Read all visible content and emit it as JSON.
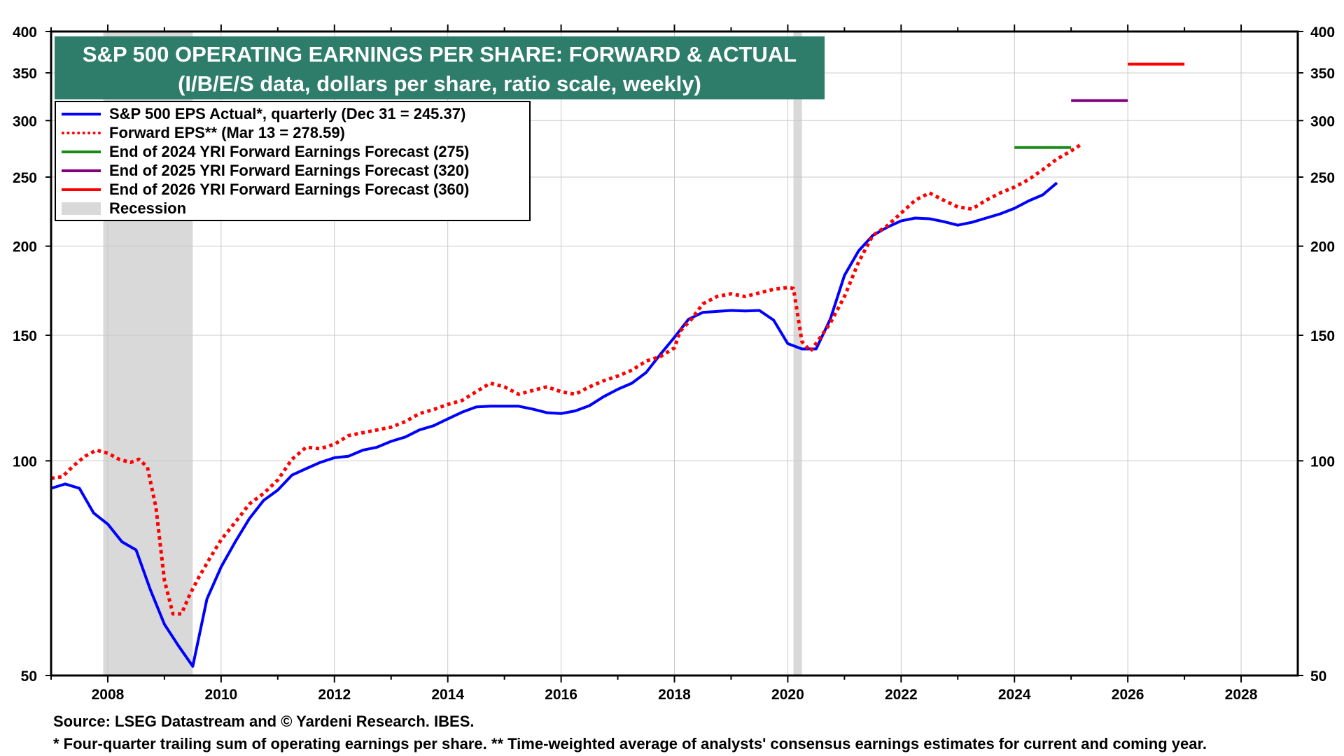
{
  "chart_data": {
    "type": "line",
    "title": "S&P 500 OPERATING EARNINGS PER SHARE: FORWARD & ACTUAL",
    "subtitle": "(I/B/E/S data, dollars per share, ratio scale, weekly)",
    "y_scale": "log",
    "ylim": [
      50,
      400
    ],
    "xlim": [
      2007.0,
      2029.0
    ],
    "y_ticks": [
      50,
      100,
      150,
      200,
      250,
      300,
      350,
      400
    ],
    "x_ticks": [
      "2008",
      "2010",
      "2012",
      "2014",
      "2016",
      "2018",
      "2020",
      "2022",
      "2024",
      "2026",
      "2028"
    ],
    "grid": true,
    "legend_position": "top-left",
    "recessions": [
      [
        2007.92,
        2009.5
      ],
      [
        2020.1,
        2020.25
      ]
    ],
    "series": [
      {
        "name": "S&P 500 EPS Actual*, quarterly (Dec 31 = 245.37)",
        "style": "solid",
        "color": "#0000ff",
        "x": [
          2007.0,
          2007.25,
          2007.5,
          2007.75,
          2008.0,
          2008.25,
          2008.5,
          2008.75,
          2009.0,
          2009.25,
          2009.5,
          2009.75,
          2010.0,
          2010.25,
          2010.5,
          2010.75,
          2011.0,
          2011.25,
          2011.5,
          2011.75,
          2012.0,
          2012.25,
          2012.5,
          2012.75,
          2013.0,
          2013.25,
          2013.5,
          2013.75,
          2014.0,
          2014.25,
          2014.5,
          2014.75,
          2015.0,
          2015.25,
          2015.5,
          2015.75,
          2016.0,
          2016.25,
          2016.5,
          2016.75,
          2017.0,
          2017.25,
          2017.5,
          2017.75,
          2018.0,
          2018.25,
          2018.5,
          2018.75,
          2019.0,
          2019.25,
          2019.5,
          2019.75,
          2020.0,
          2020.25,
          2020.5,
          2020.75,
          2021.0,
          2021.25,
          2021.5,
          2021.75,
          2022.0,
          2022.25,
          2022.5,
          2022.75,
          2023.0,
          2023.25,
          2023.5,
          2023.75,
          2024.0,
          2024.25,
          2024.5,
          2024.75
        ],
        "values": [
          91.5,
          92.8,
          91.5,
          84.5,
          81.5,
          77.0,
          75.0,
          66.0,
          59.0,
          55.0,
          51.5,
          64.0,
          71.0,
          77.0,
          83.0,
          88.0,
          91.0,
          95.5,
          97.5,
          99.5,
          101.0,
          101.5,
          103.5,
          104.5,
          106.5,
          108.0,
          110.5,
          112.0,
          114.5,
          117.0,
          119.0,
          119.3,
          119.3,
          119.3,
          118.2,
          116.8,
          116.5,
          117.5,
          119.5,
          123.0,
          126.0,
          128.5,
          133.0,
          141.0,
          149.0,
          158.0,
          161.5,
          162.0,
          162.5,
          162.2,
          162.5,
          157.5,
          146.0,
          143.5,
          143.5,
          158.0,
          182.0,
          197.0,
          207.0,
          212.5,
          217.0,
          219.0,
          218.5,
          216.5,
          214.0,
          216.0,
          219.0,
          222.0,
          226.0,
          231.5,
          236.0,
          245.37
        ]
      },
      {
        "name": "Forward EPS** (Mar 13 = 278.59)",
        "style": "dotted",
        "color": "#ff0000",
        "x": [
          2007.0,
          2007.2,
          2007.4,
          2007.6,
          2007.8,
          2008.0,
          2008.2,
          2008.4,
          2008.55,
          2008.7,
          2008.85,
          2009.0,
          2009.15,
          2009.3,
          2009.45,
          2009.6,
          2009.8,
          2010.0,
          2010.25,
          2010.5,
          2010.75,
          2011.0,
          2011.25,
          2011.5,
          2011.75,
          2012.0,
          2012.25,
          2012.5,
          2012.75,
          2013.0,
          2013.25,
          2013.5,
          2013.75,
          2014.0,
          2014.25,
          2014.5,
          2014.75,
          2015.0,
          2015.25,
          2015.5,
          2015.75,
          2016.0,
          2016.25,
          2016.5,
          2016.75,
          2017.0,
          2017.25,
          2017.5,
          2017.75,
          2018.0,
          2018.1,
          2018.3,
          2018.5,
          2018.75,
          2019.0,
          2019.25,
          2019.5,
          2019.75,
          2020.0,
          2020.1,
          2020.25,
          2020.4,
          2020.55,
          2020.75,
          2021.0,
          2021.25,
          2021.5,
          2021.75,
          2022.0,
          2022.25,
          2022.5,
          2022.75,
          2023.0,
          2023.25,
          2023.5,
          2023.75,
          2024.0,
          2024.25,
          2024.5,
          2024.75,
          2025.0,
          2025.2
        ],
        "values": [
          94.5,
          95.0,
          98.5,
          101.5,
          103.5,
          102.5,
          100.5,
          99.5,
          100.5,
          98.0,
          86.0,
          68.0,
          61.0,
          61.0,
          65.0,
          68.5,
          73.0,
          77.5,
          82.0,
          87.0,
          90.0,
          94.0,
          100.5,
          104.5,
          104.0,
          105.5,
          108.5,
          109.5,
          110.5,
          111.5,
          113.5,
          116.5,
          118.0,
          120.0,
          121.5,
          125.0,
          128.5,
          127.0,
          124.0,
          125.5,
          127.0,
          125.0,
          124.0,
          127.0,
          129.5,
          131.5,
          134.0,
          138.0,
          140.0,
          144.0,
          152.0,
          158.0,
          166.0,
          170.0,
          171.5,
          170.0,
          172.0,
          174.0,
          175.0,
          174.5,
          147.0,
          142.5,
          148.0,
          156.0,
          170.0,
          190.0,
          207.0,
          213.5,
          222.5,
          232.0,
          237.5,
          232.0,
          227.0,
          225.5,
          232.0,
          237.5,
          242.0,
          248.0,
          256.0,
          265.0,
          272.0,
          278.59
        ]
      },
      {
        "name": "End of 2024 YRI Forward Earnings Forecast (275)",
        "style": "solid",
        "color": "#1a8a1a",
        "x": [
          2024.0,
          2025.0
        ],
        "values": [
          275,
          275
        ]
      },
      {
        "name": "End of 2025 YRI Forward Earnings Forecast (320)",
        "style": "solid",
        "color": "#800080",
        "x": [
          2025.0,
          2026.0
        ],
        "values": [
          320,
          320
        ]
      },
      {
        "name": "End of 2026 YRI Forward Earnings Forecast (360)",
        "style": "solid",
        "color": "#ff0000",
        "x": [
          2026.0,
          2027.0
        ],
        "values": [
          360,
          360
        ]
      }
    ],
    "recession_label": "Recession"
  },
  "legend": [
    {
      "label": "S&P 500 EPS Actual*, quarterly (Dec 31 = 245.37)",
      "color": "#0000ff",
      "kind": "solid"
    },
    {
      "label": "Forward EPS** (Mar 13 = 278.59)",
      "color": "#ff0000",
      "kind": "dotted"
    },
    {
      "label": "End of 2024 YRI Forward Earnings Forecast (275)",
      "color": "#1a8a1a",
      "kind": "solid"
    },
    {
      "label": "End of 2025 YRI Forward Earnings Forecast (320)",
      "color": "#800080",
      "kind": "solid"
    },
    {
      "label": "End of 2026 YRI Forward Earnings Forecast (360)",
      "color": "#ff0000",
      "kind": "solid"
    },
    {
      "label": "Recession",
      "color": "#d9d9d9",
      "kind": "rect"
    }
  ],
  "footer": {
    "source": "Source: LSEG Datastream and © Yardeni Research. IBES.",
    "notes": "* Four-quarter trailing sum of operating earnings per share.   ** Time-weighted average of analysts' consensus earnings estimates for current and coming year."
  }
}
